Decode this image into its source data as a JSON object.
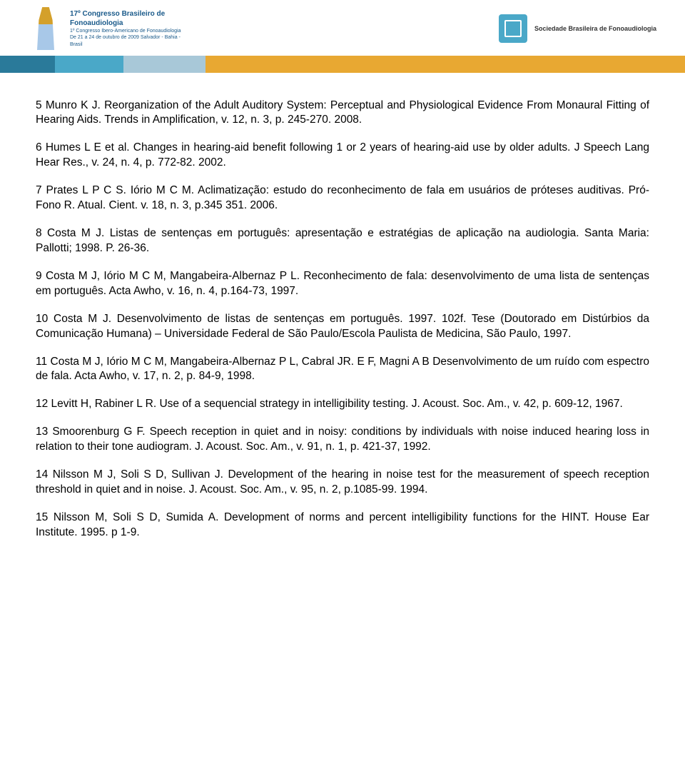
{
  "header": {
    "logo_left_title": "17º Congresso Brasileiro de Fonoaudiologia",
    "logo_left_sub1": "1º Congresso Ibero-Americano de Fonoaudiologia",
    "logo_left_sub2": "De 21 a 24 de outubro de 2009 Salvador - Bahia - Brasil",
    "logo_right_label": "Sociedade Brasileira de Fonoaudiologia",
    "band_colors": [
      "#2a7a9a",
      "#4aa8c8",
      "#a8c8d8",
      "#e8a832"
    ],
    "band_widths": [
      "8%",
      "10%",
      "12%",
      "70%"
    ]
  },
  "refs": [
    "5 Munro K J. Reorganization of the Adult Auditory System: Perceptual and Physiological Evidence From Monaural Fitting of Hearing Aids. Trends in Amplification, v. 12, n. 3, p. 245-270. 2008.",
    "6 Humes L E et al. Changes in hearing-aid benefit following 1 or 2 years of hearing-aid use by older adults. J Speech Lang Hear Res., v. 24, n. 4, p. 772-82. 2002.",
    "7 Prates L P C S. Iório M C M. Aclimatização: estudo do reconhecimento de fala em usuários de próteses auditivas. Pró-Fono R. Atual. Cient. v. 18, n. 3, p.345 351. 2006.",
    "8 Costa M J. Listas de sentenças em português: apresentação e estratégias de aplicação na audiologia. Santa Maria: Pallotti; 1998. P. 26-36.",
    "9 Costa M J, Iório M C M, Mangabeira-Albernaz P L. Reconhecimento de fala: desenvolvimento de uma lista de sentenças em português. Acta Awho, v. 16, n. 4, p.164-73, 1997.",
    "10 Costa M J. Desenvolvimento de listas de sentenças em português. 1997. 102f. Tese (Doutorado em Distúrbios da Comunicação Humana) – Universidade Federal de São Paulo/Escola Paulista de Medicina, São Paulo, 1997.",
    "11 Costa M J, Iório M C M, Mangabeira-Albernaz P L, Cabral JR. E F, Magni A B Desenvolvimento de um ruído com espectro de fala. Acta Awho, v. 17, n. 2, p. 84-9, 1998.",
    "12 Levitt H, Rabiner L R. Use of a sequencial strategy in intelligibility testing. J. Acoust. Soc. Am., v. 42, p. 609-12, 1967.",
    "13 Smoorenburg G F. Speech reception in quiet and in noisy: conditions by individuals with noise induced hearing loss in relation to their tone audiogram. J. Acoust. Soc. Am., v. 91, n. 1, p. 421-37, 1992.",
    "14 Nilsson M J, Soli S D, Sullivan J. Development of the hearing in noise test for the measurement of speech reception threshold in quiet and in noise. J. Acoust. Soc. Am., v. 95, n. 2, p.1085-99. 1994.",
    "15 Nilsson M, Soli S D, Sumida A. Development of norms and percent intelligibility functions for the HINT. House Ear Institute. 1995. p 1-9."
  ]
}
